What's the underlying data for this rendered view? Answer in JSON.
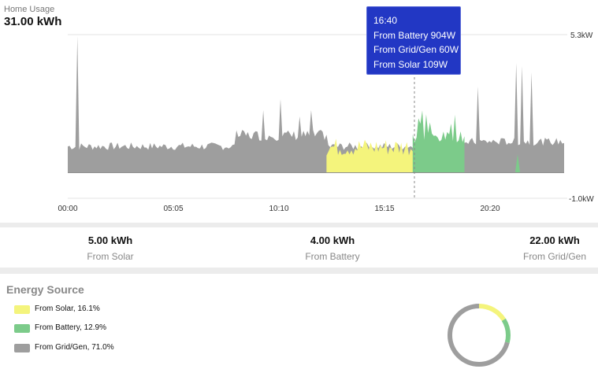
{
  "header": {
    "title": "Home Usage",
    "total": "31.00 kWh"
  },
  "chart_data": {
    "type": "area",
    "x_ticks": [
      "00:00",
      "05:05",
      "10:10",
      "15:15",
      "20:20"
    ],
    "y_ticks": [
      "5.3kW",
      "-1.0kW"
    ],
    "ylim": [
      -1.0,
      5.3
    ],
    "series": [
      {
        "name": "From Grid/Gen",
        "color": "#9e9e9e"
      },
      {
        "name": "From Solar",
        "color": "#f4f47c"
      },
      {
        "name": "From Battery",
        "color": "#7ccb8a"
      }
    ],
    "cursor_time": "16:40"
  },
  "tooltip": {
    "time": "16:40",
    "lines": [
      "From Battery 904W",
      "From Grid/Gen 60W",
      "From Solar 109W"
    ]
  },
  "summary": [
    {
      "value": "5.00 kWh",
      "label": "From Solar"
    },
    {
      "value": "4.00 kWh",
      "label": "From Battery"
    },
    {
      "value": "22.00 kWh",
      "label": "From Grid/Gen"
    }
  ],
  "energy_source": {
    "title": "Energy Source",
    "items": [
      {
        "label": "From Solar, 16.1%",
        "color": "#f4f47c",
        "percent": 16.1
      },
      {
        "label": "From Battery, 12.9%",
        "color": "#7ccb8a",
        "percent": 12.9
      },
      {
        "label": "From Grid/Gen, 71.0%",
        "color": "#9e9e9e",
        "percent": 71.0
      }
    ]
  }
}
